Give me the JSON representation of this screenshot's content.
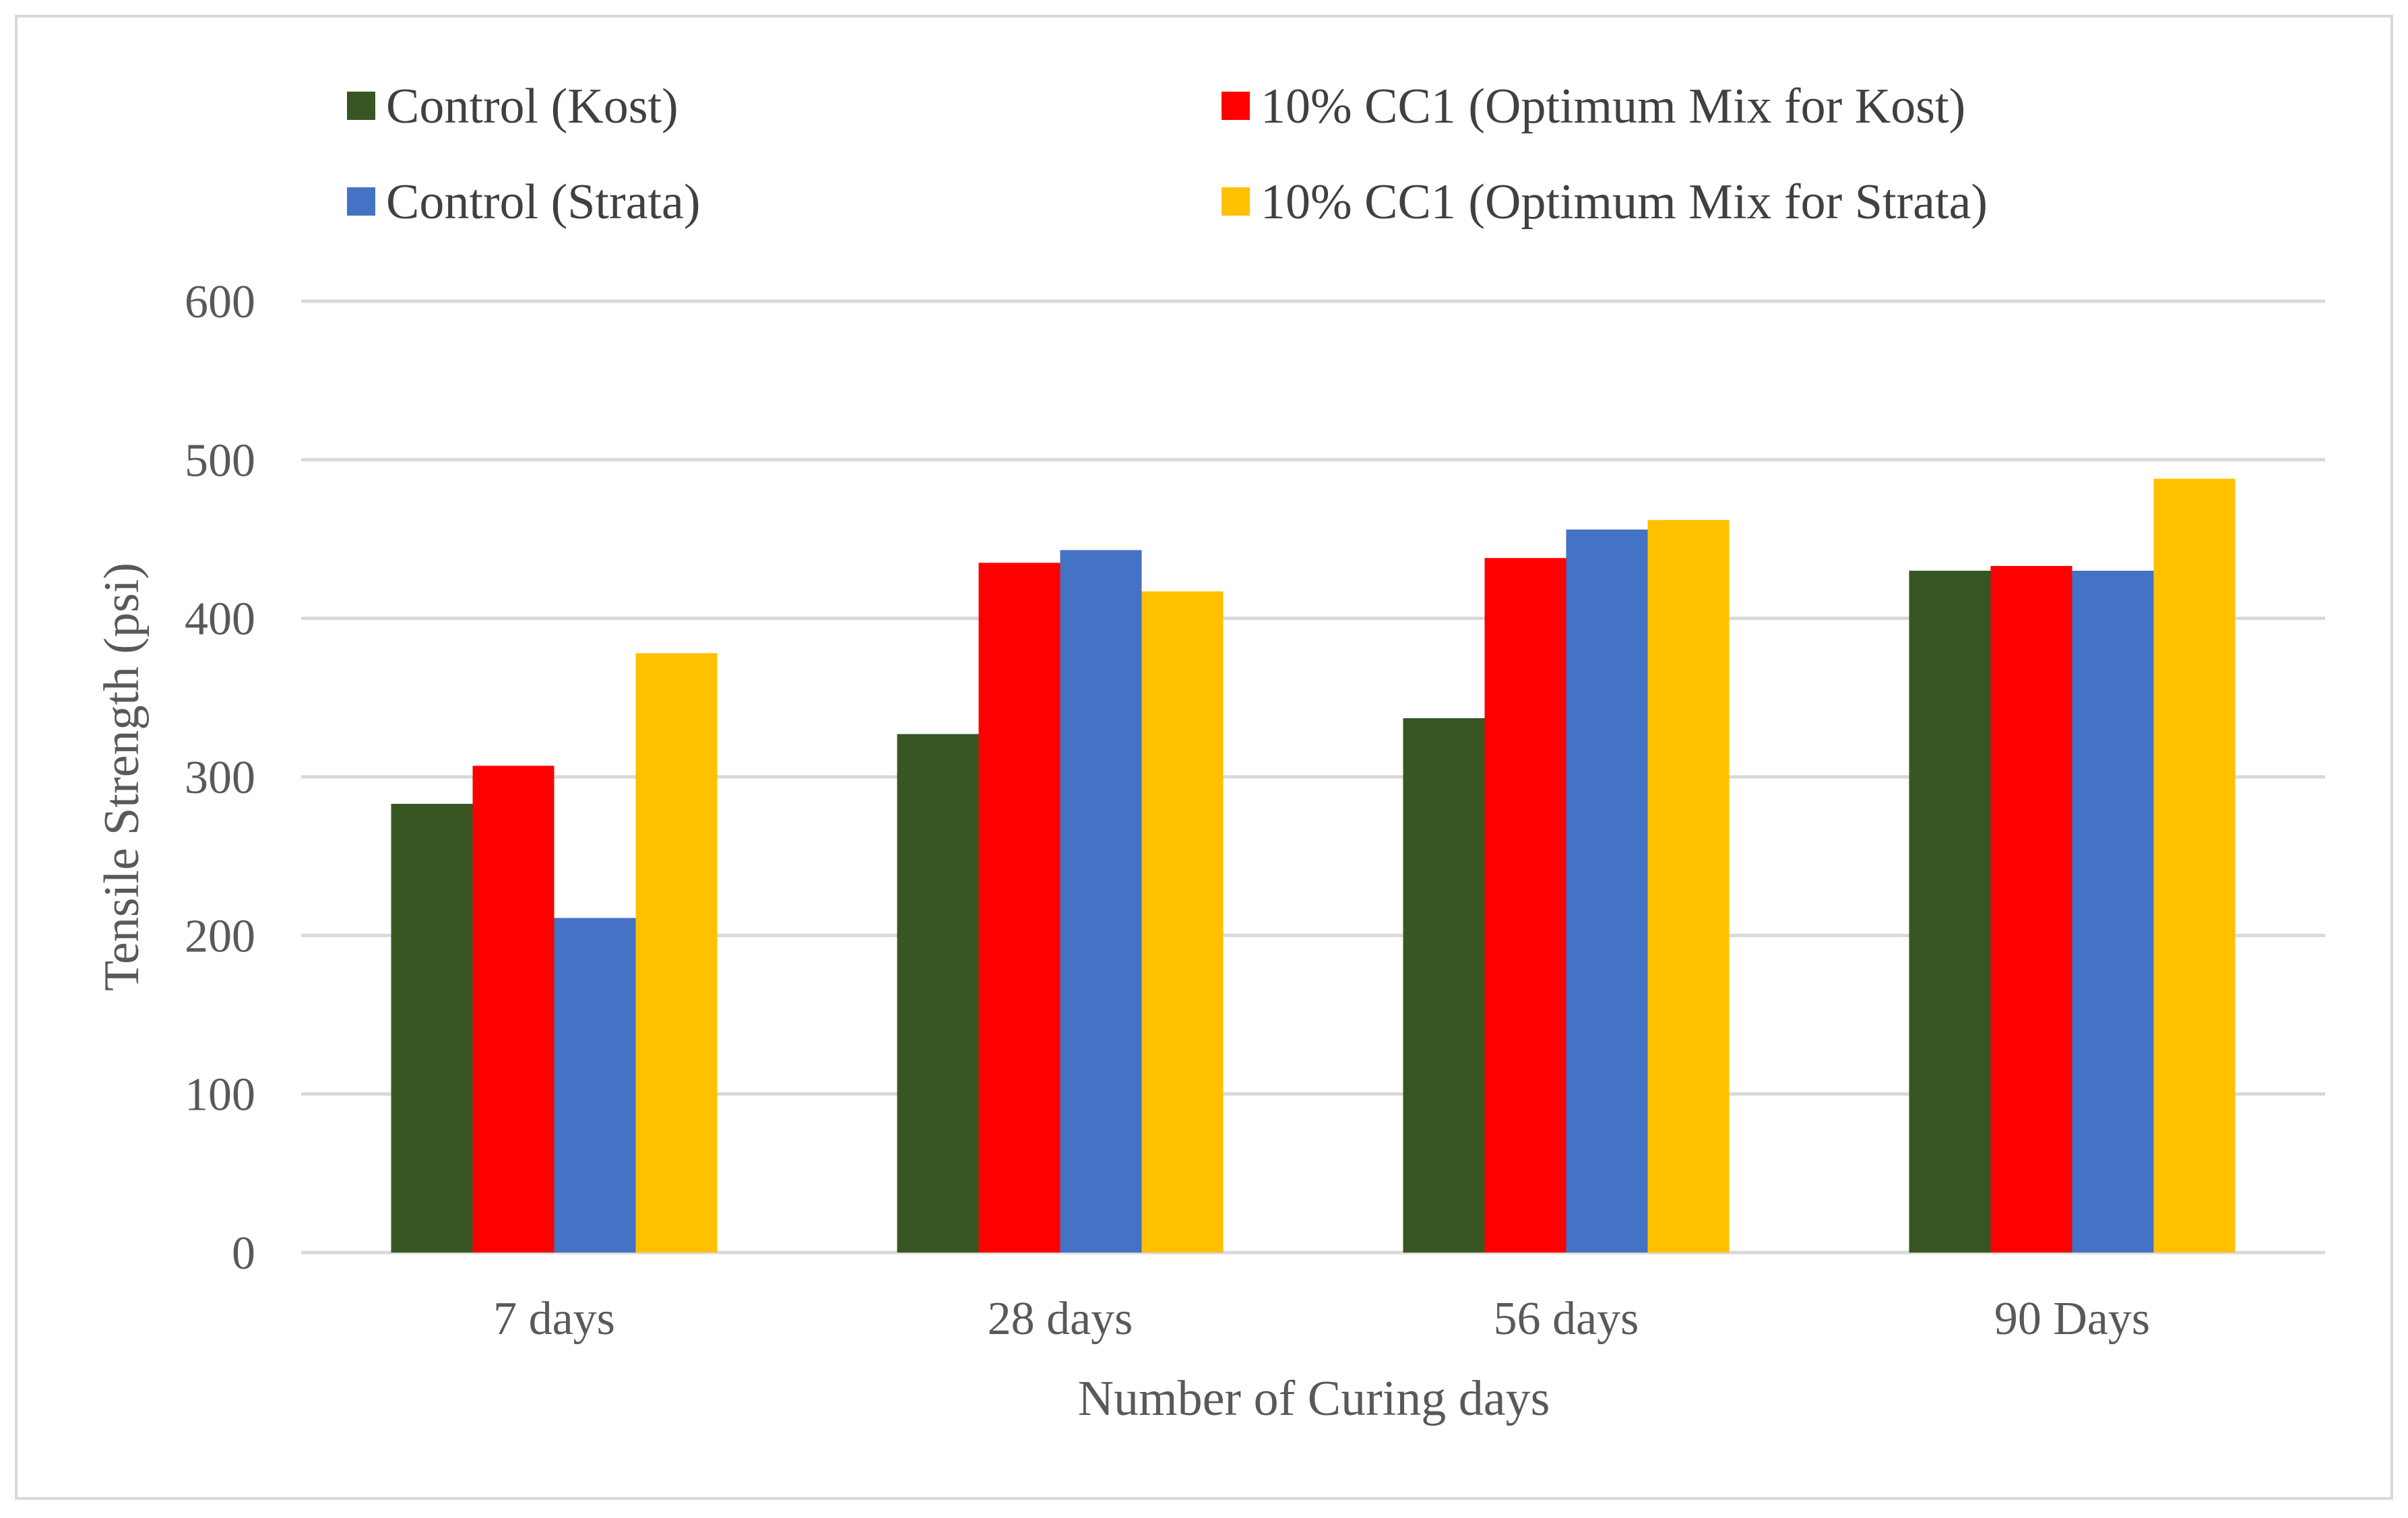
{
  "chart_data": {
    "type": "bar",
    "title": "",
    "xlabel": "Number of Curing days",
    "ylabel": "Tensile Strength (psi)",
    "categories": [
      "7 days",
      "28 days",
      "56 days",
      "90 Days"
    ],
    "ylim": [
      0,
      600
    ],
    "yticks": [
      0,
      100,
      200,
      300,
      400,
      500,
      600
    ],
    "grid": true,
    "legend_position": "top",
    "series": [
      {
        "name": "Control (Kost)",
        "color": "#375623",
        "values": [
          283,
          327,
          337,
          430
        ]
      },
      {
        "name": "10% CC1 (Optimum Mix for Kost)",
        "color": "#FF0000",
        "values": [
          307,
          435,
          438,
          433
        ]
      },
      {
        "name": "Control (Strata)",
        "color": "#4472C4",
        "values": [
          211,
          443,
          456,
          430
        ]
      },
      {
        "name": "10% CC1 (Optimum Mix for Strata)",
        "color": "#FFC000",
        "values": [
          378,
          417,
          462,
          488
        ]
      }
    ]
  }
}
